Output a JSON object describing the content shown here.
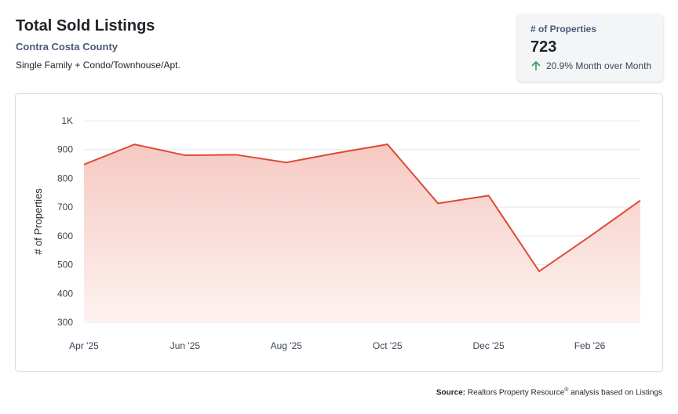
{
  "header": {
    "title": "Total Sold Listings",
    "subtitle": "Contra Costa County",
    "note": "Single Family + Condo/Townhouse/Apt."
  },
  "kpi": {
    "label": "# of Properties",
    "value": "723",
    "change": "20.9% Month over Month",
    "arrow_icon": "arrow-up-icon",
    "arrow_color": "#2e9e5b"
  },
  "footer": {
    "source_label": "Source:",
    "source_text_1": "Realtors Property Resource",
    "source_mark": "®",
    "source_text_2": " analysis based on Listings"
  },
  "colors": {
    "line": "#dd4a36",
    "fill_top": "#f6c9c2",
    "fill_bottom": "#fdf2f0",
    "grid": "#e6e8eb"
  },
  "chart_data": {
    "type": "area",
    "title": "",
    "xlabel": "",
    "ylabel": "# of Properties",
    "ylim": [
      300,
      1000
    ],
    "yticks": [
      300,
      400,
      500,
      600,
      700,
      800,
      900,
      1000
    ],
    "ytick_labels": [
      "300",
      "400",
      "500",
      "600",
      "700",
      "800",
      "900",
      "1K"
    ],
    "x": [
      "Apr '25",
      "May '25",
      "Jun '25",
      "Jul '25",
      "Aug '25",
      "Sep '25",
      "Oct '25",
      "Nov '25",
      "Dec '25",
      "Jan '26",
      "Feb '26",
      "Mar '26"
    ],
    "xtick_labels": [
      "Apr '25",
      "Jun '25",
      "Aug '25",
      "Oct '25",
      "Dec '25",
      "Feb '26"
    ],
    "series": [
      {
        "values": [
          848,
          918,
          880,
          882,
          855,
          888,
          918,
          713,
          740,
          477,
          598,
          723
        ]
      }
    ],
    "grid": true,
    "legend": "none"
  }
}
